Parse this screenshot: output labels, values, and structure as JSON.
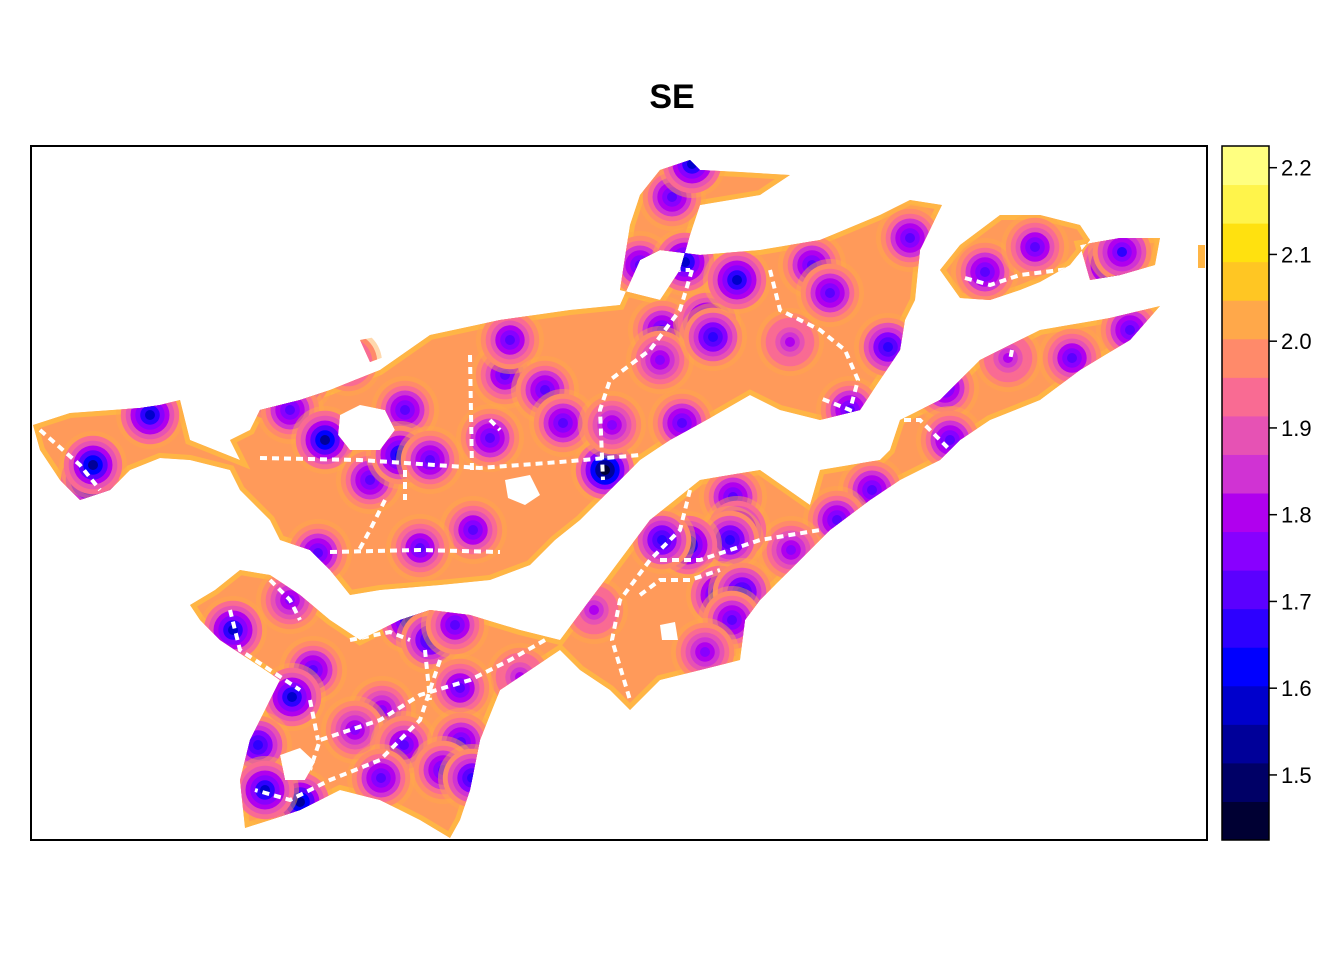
{
  "chart_data": {
    "type": "heatmap",
    "title": "SE",
    "xlabel": "",
    "ylabel": "",
    "legend": {
      "position": "right",
      "range": [
        1.425,
        2.225
      ],
      "ticks": [
        1.5,
        1.6,
        1.7,
        1.8,
        1.9,
        2.0,
        2.1,
        2.2
      ],
      "tick_labels": [
        "1.5",
        "1.6",
        "1.7",
        "1.8",
        "1.9",
        "2.0",
        "2.1",
        "2.2"
      ],
      "colors": [
        "#000033",
        "#000066",
        "#000099",
        "#0000CC",
        "#0000FF",
        "#2D00FF",
        "#5B00FF",
        "#8800FF",
        "#B000EE",
        "#D033D3",
        "#E652B4",
        "#F96B93",
        "#FF8A6A",
        "#FFA84A",
        "#FFC623",
        "#FFE10F",
        "#FFF44B",
        "#FFFF80"
      ]
    },
    "background": "#FF9A5A",
    "edge_color": "#FFB545",
    "grid": false,
    "regions": [
      [
        [
          33,
          425
        ],
        [
          70,
          413
        ],
        [
          140,
          408
        ],
        [
          160,
          405
        ],
        [
          180,
          400
        ],
        [
          190,
          440
        ],
        [
          210,
          448
        ],
        [
          240,
          460
        ],
        [
          230,
          440
        ],
        [
          250,
          430
        ],
        [
          260,
          410
        ],
        [
          300,
          400
        ],
        [
          330,
          390
        ],
        [
          380,
          370
        ],
        [
          430,
          335
        ],
        [
          500,
          320
        ],
        [
          570,
          310
        ],
        [
          620,
          305
        ],
        [
          640,
          260
        ],
        [
          660,
          250
        ],
        [
          700,
          255
        ],
        [
          760,
          250
        ],
        [
          820,
          240
        ],
        [
          880,
          215
        ],
        [
          910,
          200
        ],
        [
          942,
          205
        ],
        [
          920,
          250
        ],
        [
          915,
          300
        ],
        [
          905,
          320
        ],
        [
          900,
          350
        ],
        [
          880,
          380
        ],
        [
          860,
          410
        ],
        [
          820,
          420
        ],
        [
          780,
          410
        ],
        [
          750,
          395
        ],
        [
          710,
          418
        ],
        [
          670,
          440
        ],
        [
          640,
          460
        ],
        [
          610,
          490
        ],
        [
          580,
          520
        ],
        [
          555,
          540
        ],
        [
          530,
          565
        ],
        [
          490,
          580
        ],
        [
          440,
          585
        ],
        [
          380,
          590
        ],
        [
          350,
          595
        ],
        [
          330,
          570
        ],
        [
          310,
          550
        ],
        [
          280,
          540
        ],
        [
          270,
          520
        ],
        [
          240,
          490
        ],
        [
          230,
          470
        ],
        [
          190,
          460
        ],
        [
          160,
          458
        ],
        [
          130,
          470
        ],
        [
          110,
          490
        ],
        [
          80,
          500
        ],
        [
          60,
          480
        ],
        [
          40,
          450
        ]
      ],
      [
        [
          620,
          290
        ],
        [
          630,
          225
        ],
        [
          640,
          195
        ],
        [
          660,
          170
        ],
        [
          690,
          160
        ],
        [
          700,
          170
        ],
        [
          740,
          172
        ],
        [
          790,
          175
        ],
        [
          760,
          195
        ],
        [
          700,
          205
        ],
        [
          690,
          235
        ],
        [
          680,
          270
        ],
        [
          660,
          300
        ]
      ],
      [
        [
          190,
          605
        ],
        [
          215,
          590
        ],
        [
          240,
          570
        ],
        [
          270,
          575
        ],
        [
          300,
          595
        ],
        [
          330,
          620
        ],
        [
          360,
          640
        ],
        [
          400,
          620
        ],
        [
          430,
          610
        ],
        [
          470,
          615
        ],
        [
          520,
          630
        ],
        [
          560,
          640
        ],
        [
          590,
          600
        ],
        [
          620,
          560
        ],
        [
          650,
          520
        ],
        [
          700,
          480
        ],
        [
          760,
          470
        ],
        [
          810,
          505
        ],
        [
          820,
          470
        ],
        [
          880,
          460
        ],
        [
          890,
          450
        ],
        [
          900,
          420
        ],
        [
          940,
          400
        ],
        [
          980,
          360
        ],
        [
          1040,
          330
        ],
        [
          1110,
          318
        ],
        [
          1160,
          306
        ],
        [
          1130,
          340
        ],
        [
          1080,
          370
        ],
        [
          1040,
          400
        ],
        [
          990,
          420
        ],
        [
          960,
          440
        ],
        [
          940,
          460
        ],
        [
          900,
          480
        ],
        [
          870,
          500
        ],
        [
          830,
          530
        ],
        [
          800,
          560
        ],
        [
          780,
          580
        ],
        [
          760,
          600
        ],
        [
          745,
          620
        ],
        [
          740,
          660
        ],
        [
          700,
          670
        ],
        [
          660,
          680
        ],
        [
          630,
          710
        ],
        [
          610,
          690
        ],
        [
          580,
          670
        ],
        [
          560,
          650
        ],
        [
          530,
          670
        ],
        [
          500,
          690
        ],
        [
          480,
          740
        ],
        [
          470,
          790
        ],
        [
          460,
          820
        ],
        [
          450,
          838
        ],
        [
          420,
          820
        ],
        [
          380,
          800
        ],
        [
          340,
          790
        ],
        [
          300,
          810
        ],
        [
          270,
          820
        ],
        [
          245,
          828
        ],
        [
          240,
          780
        ],
        [
          250,
          740
        ],
        [
          270,
          700
        ],
        [
          280,
          680
        ],
        [
          250,
          660
        ],
        [
          220,
          640
        ],
        [
          200,
          620
        ]
      ],
      [
        [
          940,
          270
        ],
        [
          960,
          245
        ],
        [
          1000,
          215
        ],
        [
          1040,
          215
        ],
        [
          1080,
          225
        ],
        [
          1090,
          240
        ],
        [
          1070,
          265
        ],
        [
          1040,
          282
        ],
        [
          1020,
          290
        ],
        [
          990,
          300
        ],
        [
          960,
          298
        ]
      ],
      [
        [
          1080,
          245
        ],
        [
          1120,
          238
        ],
        [
          1160,
          238
        ],
        [
          1155,
          265
        ],
        [
          1120,
          275
        ],
        [
          1090,
          280
        ]
      ],
      [
        [
          1198,
          245
        ],
        [
          1205,
          245
        ],
        [
          1205,
          268
        ],
        [
          1198,
          268
        ]
      ]
    ],
    "holes": [
      [
        [
          340,
          415
        ],
        [
          360,
          405
        ],
        [
          385,
          410
        ],
        [
          395,
          430
        ],
        [
          380,
          450
        ],
        [
          350,
          450
        ],
        [
          338,
          435
        ]
      ],
      [
        [
          505,
          480
        ],
        [
          530,
          475
        ],
        [
          540,
          495
        ],
        [
          525,
          505
        ],
        [
          508,
          498
        ]
      ],
      [
        [
          280,
          755
        ],
        [
          300,
          748
        ],
        [
          315,
          762
        ],
        [
          305,
          780
        ],
        [
          285,
          780
        ]
      ],
      [
        [
          660,
          625
        ],
        [
          675,
          622
        ],
        [
          678,
          640
        ],
        [
          662,
          640
        ]
      ],
      [
        [
          360,
          340
        ],
        [
          385,
          335
        ],
        [
          390,
          355
        ],
        [
          370,
          362
        ]
      ]
    ],
    "minima": [
      [
        90,
        480,
        1.48
      ],
      [
        93,
        465,
        1.55
      ],
      [
        150,
        415,
        1.6
      ],
      [
        270,
        390,
        1.6
      ],
      [
        300,
        380,
        1.65
      ],
      [
        290,
        410,
        1.7
      ],
      [
        325,
        440,
        1.55
      ],
      [
        348,
        362,
        1.75
      ],
      [
        370,
        480,
        1.7
      ],
      [
        405,
        410,
        1.7
      ],
      [
        400,
        455,
        1.62
      ],
      [
        430,
        460,
        1.7
      ],
      [
        490,
        438,
        1.7
      ],
      [
        505,
        375,
        1.72
      ],
      [
        510,
        340,
        1.72
      ],
      [
        545,
        390,
        1.7
      ],
      [
        563,
        423,
        1.7
      ],
      [
        605,
        470,
        1.45
      ],
      [
        612,
        425,
        1.75
      ],
      [
        682,
        423,
        1.7
      ],
      [
        662,
        330,
        1.7
      ],
      [
        660,
        360,
        1.75
      ],
      [
        640,
        265,
        1.7
      ],
      [
        685,
        262,
        1.6
      ],
      [
        672,
        197,
        1.7
      ],
      [
        692,
        164,
        1.6
      ],
      [
        707,
        322,
        1.6
      ],
      [
        713,
        337,
        1.65
      ],
      [
        737,
        280,
        1.6
      ],
      [
        790,
        342,
        1.8
      ],
      [
        812,
        265,
        1.7
      ],
      [
        830,
        293,
        1.7
      ],
      [
        910,
        238,
        1.7
      ],
      [
        888,
        347,
        1.65
      ],
      [
        850,
        410,
        1.7
      ],
      [
        930,
        380,
        1.55
      ],
      [
        945,
        388,
        1.7
      ],
      [
        950,
        440,
        1.7
      ],
      [
        985,
        272,
        1.7
      ],
      [
        1035,
        247,
        1.72
      ],
      [
        1110,
        265,
        1.6
      ],
      [
        1122,
        252,
        1.68
      ],
      [
        1130,
        330,
        1.7
      ],
      [
        1008,
        358,
        1.8
      ],
      [
        1072,
        358,
        1.72
      ],
      [
        872,
        490,
        1.7
      ],
      [
        837,
        520,
        1.7
      ],
      [
        791,
        550,
        1.75
      ],
      [
        733,
        497,
        1.7
      ],
      [
        737,
        530,
        1.55
      ],
      [
        730,
        540,
        1.65
      ],
      [
        688,
        545,
        1.6
      ],
      [
        662,
        540,
        1.65
      ],
      [
        720,
        595,
        1.6
      ],
      [
        742,
        592,
        1.65
      ],
      [
        732,
        620,
        1.7
      ],
      [
        705,
        652,
        1.75
      ],
      [
        594,
        610,
        1.8
      ],
      [
        520,
        677,
        1.8
      ],
      [
        473,
        530,
        1.72
      ],
      [
        420,
        548,
        1.72
      ],
      [
        318,
        553,
        1.7
      ],
      [
        233,
        630,
        1.6
      ],
      [
        290,
        600,
        1.75
      ],
      [
        313,
        670,
        1.7
      ],
      [
        292,
        697,
        1.6
      ],
      [
        410,
        620,
        1.6
      ],
      [
        430,
        640,
        1.65
      ],
      [
        455,
        625,
        1.72
      ],
      [
        460,
        688,
        1.72
      ],
      [
        382,
        710,
        1.75
      ],
      [
        355,
        730,
        1.75
      ],
      [
        404,
        745,
        1.72
      ],
      [
        461,
        742,
        1.7
      ],
      [
        443,
        770,
        1.7
      ],
      [
        472,
        778,
        1.65
      ],
      [
        381,
        778,
        1.7
      ],
      [
        290,
        795,
        1.6
      ],
      [
        300,
        802,
        1.55
      ],
      [
        258,
        745,
        1.65
      ],
      [
        265,
        790,
        1.6
      ]
    ],
    "roads": [
      [
        [
          40,
          430
        ],
        [
          80,
          465
        ],
        [
          100,
          490
        ]
      ],
      [
        [
          260,
          458
        ],
        [
          360,
          460
        ],
        [
          480,
          468
        ],
        [
          560,
          462
        ],
        [
          640,
          455
        ]
      ],
      [
        [
          470,
          355
        ],
        [
          472,
          470
        ]
      ],
      [
        [
          405,
          470
        ],
        [
          405,
          500
        ]
      ],
      [
        [
          385,
          500
        ],
        [
          370,
          530
        ],
        [
          358,
          552
        ]
      ],
      [
        [
          330,
          552
        ],
        [
          420,
          550
        ],
        [
          500,
          552
        ]
      ],
      [
        [
          490,
          420
        ],
        [
          500,
          430
        ]
      ],
      [
        [
          640,
          280
        ],
        [
          660,
          270
        ],
        [
          690,
          270
        ]
      ],
      [
        [
          692,
          270
        ],
        [
          680,
          310
        ],
        [
          650,
          350
        ],
        [
          610,
          380
        ],
        [
          600,
          410
        ],
        [
          603,
          480
        ]
      ],
      [
        [
          770,
          270
        ],
        [
          780,
          310
        ],
        [
          820,
          330
        ],
        [
          845,
          350
        ],
        [
          858,
          380
        ],
        [
          850,
          410
        ],
        [
          820,
          398
        ]
      ],
      [
        [
          965,
          278
        ],
        [
          990,
          285
        ],
        [
          1020,
          275
        ],
        [
          1060,
          270
        ],
        [
          1080,
          268
        ]
      ],
      [
        [
          1012,
          350
        ],
        [
          1010,
          360
        ]
      ],
      [
        [
          880,
          420
        ],
        [
          920,
          420
        ],
        [
          940,
          440
        ],
        [
          950,
          450
        ]
      ],
      [
        [
          690,
          490
        ],
        [
          680,
          530
        ],
        [
          650,
          560
        ],
        [
          620,
          600
        ],
        [
          612,
          640
        ],
        [
          630,
          700
        ]
      ],
      [
        [
          660,
          560
        ],
        [
          700,
          560
        ],
        [
          760,
          540
        ],
        [
          820,
          530
        ]
      ],
      [
        [
          640,
          595
        ],
        [
          660,
          580
        ],
        [
          690,
          580
        ],
        [
          720,
          570
        ]
      ],
      [
        [
          230,
          610
        ],
        [
          240,
          650
        ],
        [
          270,
          670
        ],
        [
          300,
          690
        ]
      ],
      [
        [
          270,
          580
        ],
        [
          290,
          600
        ],
        [
          300,
          620
        ]
      ],
      [
        [
          440,
          660
        ],
        [
          420,
          720
        ],
        [
          380,
          760
        ],
        [
          330,
          780
        ],
        [
          290,
          800
        ],
        [
          255,
          790
        ]
      ],
      [
        [
          545,
          640
        ],
        [
          510,
          660
        ],
        [
          470,
          680
        ],
        [
          420,
          695
        ],
        [
          380,
          720
        ],
        [
          320,
          740
        ],
        [
          310,
          770
        ]
      ],
      [
        [
          310,
          700
        ],
        [
          318,
          740
        ]
      ],
      [
        [
          425,
          650
        ],
        [
          430,
          700
        ]
      ],
      [
        [
          350,
          640
        ],
        [
          390,
          632
        ],
        [
          410,
          640
        ]
      ]
    ]
  }
}
